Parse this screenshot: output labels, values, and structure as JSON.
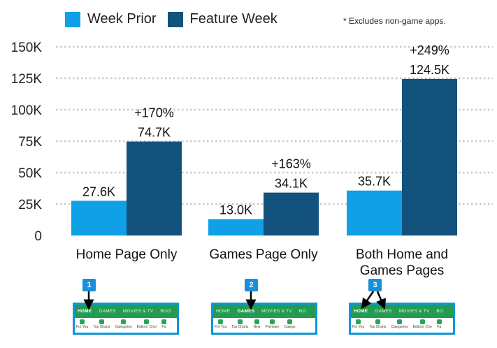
{
  "legend": {
    "items": [
      {
        "label": "Week Prior",
        "color": "#0fa0e6"
      },
      {
        "label": "Feature Week",
        "color": "#12527c"
      }
    ]
  },
  "footnote": "* Excludes non-game apps.",
  "chart_data": {
    "type": "bar",
    "title": "",
    "xlabel": "",
    "ylabel": "",
    "ylim": [
      0,
      150000
    ],
    "yticks": [
      0,
      25000,
      50000,
      75000,
      100000,
      125000,
      150000
    ],
    "ytick_labels": [
      "0",
      "25K",
      "50K",
      "75K",
      "100K",
      "125K",
      "150K"
    ],
    "grid": true,
    "legend_position": "top-left",
    "categories": [
      [
        "Home Page Only"
      ],
      [
        "Games Page Only"
      ],
      [
        "Both Home and",
        "Games Pages"
      ]
    ],
    "series": [
      {
        "name": "Week Prior",
        "color": "#0fa0e6",
        "values": [
          27600,
          13000,
          35700
        ],
        "labels": [
          "27.6K",
          "13.0K",
          "35.7K"
        ]
      },
      {
        "name": "Feature Week",
        "color": "#12527c",
        "values": [
          74700,
          34100,
          124500
        ],
        "labels": [
          "74.7K",
          "34.1K",
          "124.5K"
        ]
      }
    ],
    "annotations": [
      "+170%",
      "+163%",
      "+249%"
    ]
  },
  "screenshots": [
    {
      "badge": "1",
      "tabs": [
        "HOME",
        "GAMES",
        "MOVIES & TV",
        "BOO"
      ],
      "active_tab": 0,
      "icons": [
        "For You",
        "Top Charts",
        "Categories",
        "Editors' Choi",
        "Fa"
      ]
    },
    {
      "badge": "2",
      "tabs": [
        "HOME",
        "GAMES",
        "MOVIES & TV",
        "BO"
      ],
      "active_tab": 1,
      "icons": [
        "For You",
        "Top Charts",
        "New",
        "Premium",
        "Catego"
      ]
    },
    {
      "badge": "3",
      "tabs": [
        "HOME",
        "GAMES",
        "MOVIES & TV",
        "BO"
      ],
      "active_tab": 0,
      "icons": [
        "For You",
        "Top Charts",
        "Categories",
        "Editors' Cho",
        "Fa"
      ]
    }
  ]
}
